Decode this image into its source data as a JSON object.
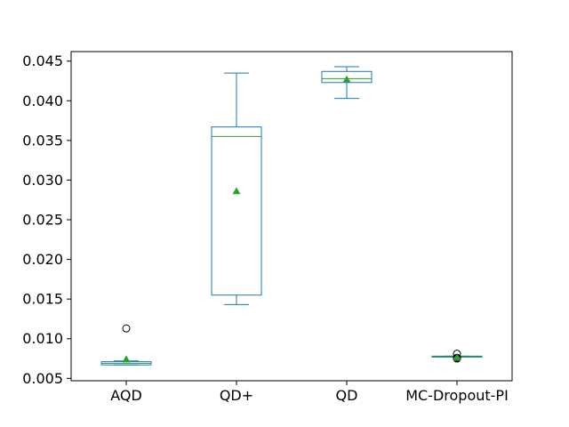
{
  "chart_data": {
    "type": "box",
    "categories": [
      "AQD",
      "QD+",
      "QD",
      "MC-Dropout-PI"
    ],
    "ylim": [
      0.0047,
      0.0462
    ],
    "yticks": [
      0.005,
      0.01,
      0.015,
      0.02,
      0.025,
      0.03,
      0.035,
      0.04,
      0.045
    ],
    "ytick_labels": [
      "0.005",
      "0.010",
      "0.015",
      "0.020",
      "0.025",
      "0.030",
      "0.035",
      "0.040",
      "0.045"
    ],
    "grid": false,
    "boxes": [
      {
        "category": "AQD",
        "whisker_low": 0.0067,
        "q1": 0.0067,
        "median": 0.0069,
        "q3": 0.0071,
        "whisker_high": 0.0072,
        "mean": 0.0074,
        "outliers": [
          0.0113
        ]
      },
      {
        "category": "QD+",
        "whisker_low": 0.0143,
        "q1": 0.0155,
        "median": 0.0355,
        "q3": 0.0367,
        "whisker_high": 0.0435,
        "mean": 0.0286,
        "outliers": []
      },
      {
        "category": "QD",
        "whisker_low": 0.0403,
        "q1": 0.0423,
        "median": 0.0428,
        "q3": 0.0437,
        "whisker_high": 0.0443,
        "mean": 0.0427,
        "outliers": []
      },
      {
        "category": "MC-Dropout-PI",
        "whisker_low": 0.0077,
        "q1": 0.0077,
        "median": 0.0077,
        "q3": 0.0078,
        "whisker_high": 0.0078,
        "mean": 0.0076,
        "outliers": [
          0.0081,
          0.0076,
          0.0075
        ]
      }
    ],
    "colors": {
      "box": "#1f77b4",
      "median": "#2ca02c",
      "mean": "#2ca02c",
      "outlier": "#000000",
      "axes": "#000000"
    }
  }
}
